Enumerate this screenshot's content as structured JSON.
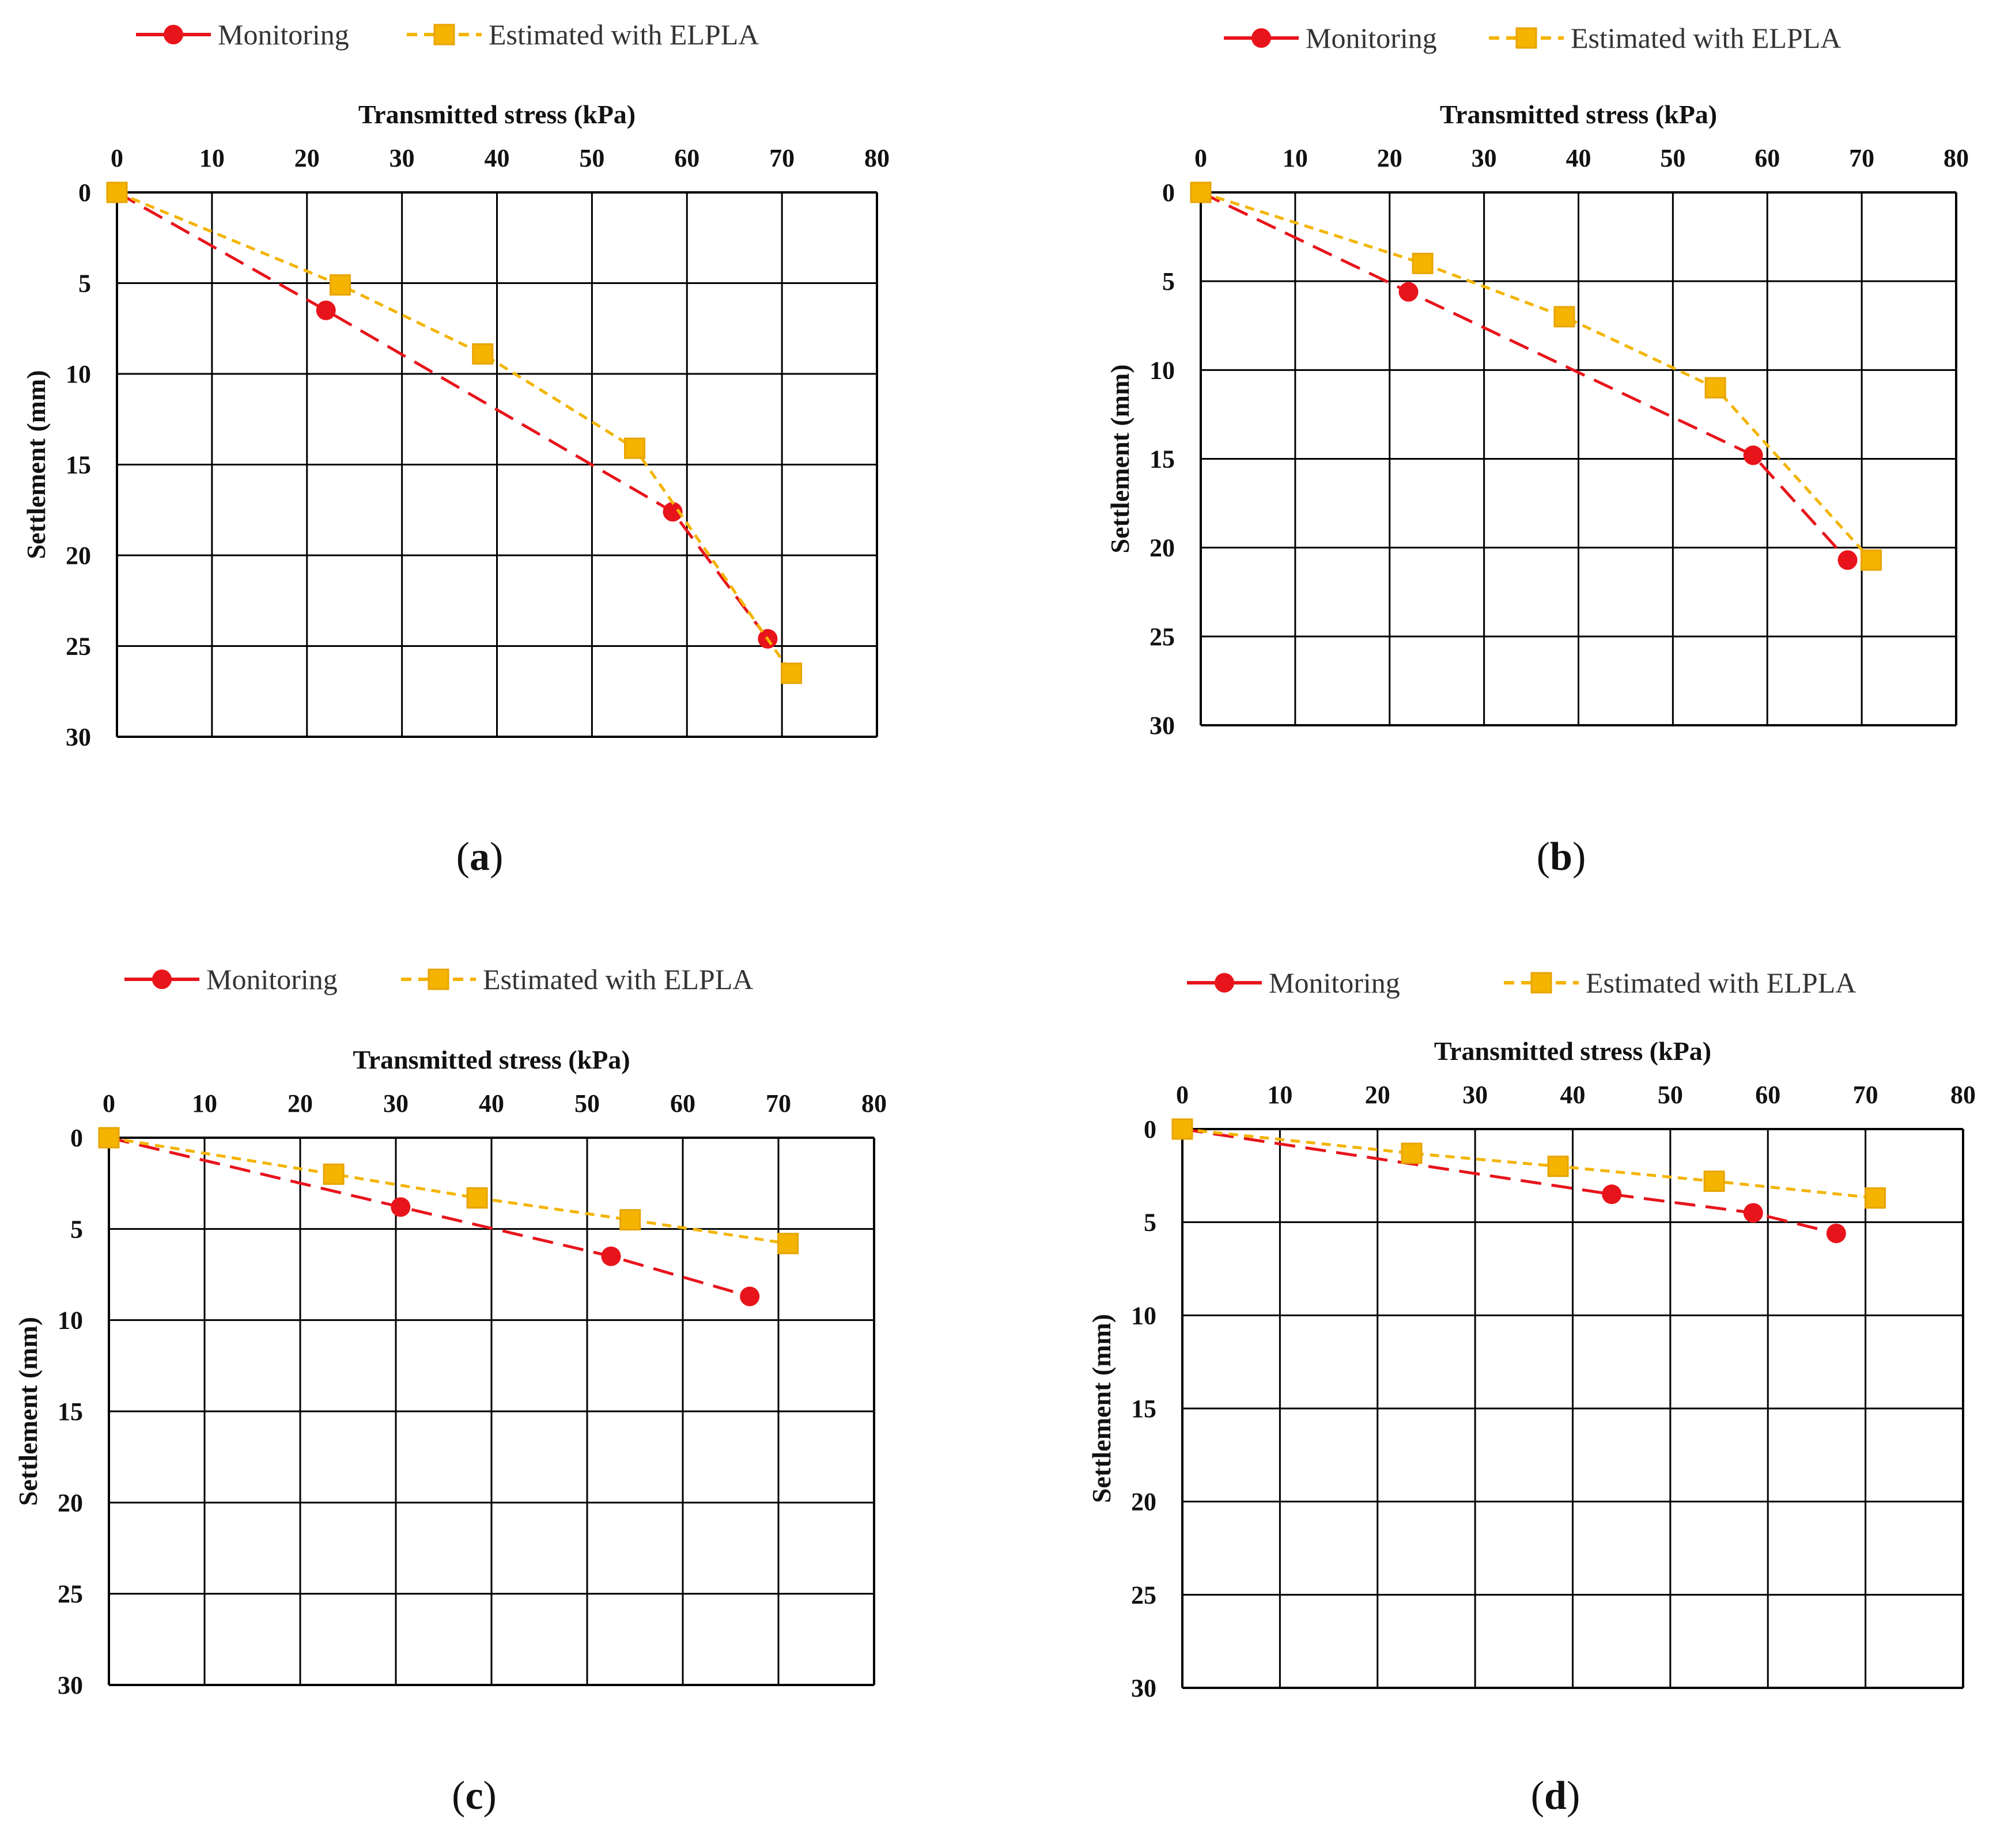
{
  "colors": {
    "monitoring": "#e8141b",
    "estimated": "#f4b400",
    "estimated_edge": "#e8a400",
    "grid": "#000000",
    "text": "#111111"
  },
  "chart_data": [
    {
      "panel": "a",
      "type": "line",
      "xlabel": "Transmitted stress (kPa)",
      "ylabel": "Settlement (mm)",
      "x_ticks": [
        "0",
        "10",
        "20",
        "30",
        "40",
        "50",
        "60",
        "70",
        "80"
      ],
      "y_ticks": [
        "0",
        "5",
        "10",
        "15",
        "20",
        "25",
        "30"
      ],
      "xlim": [
        0,
        80
      ],
      "ylim": [
        0,
        30
      ],
      "y_inverted": true,
      "x_axis_position": "top",
      "legend": {
        "monitoring": "Monitoring",
        "estimated": "Estimated with ELPLA"
      },
      "series": [
        {
          "name": "Monitoring",
          "style": "dashed-circle",
          "x": [
            0,
            22,
            58.5,
            68.5
          ],
          "y": [
            0,
            6.5,
            17.6,
            24.6
          ]
        },
        {
          "name": "Estimated with ELPLA",
          "style": "dashed-square",
          "x": [
            0,
            23.5,
            38.5,
            54.5,
            71
          ],
          "y": [
            0,
            5.1,
            8.9,
            14.1,
            26.5
          ]
        }
      ]
    },
    {
      "panel": "b",
      "type": "line",
      "xlabel": "Transmitted stress (kPa)",
      "ylabel": "Settlement (mm)",
      "x_ticks": [
        "0",
        "10",
        "20",
        "30",
        "40",
        "50",
        "60",
        "70",
        "80"
      ],
      "y_ticks": [
        "0",
        "5",
        "10",
        "15",
        "20",
        "25",
        "30"
      ],
      "xlim": [
        0,
        80
      ],
      "ylim": [
        0,
        30
      ],
      "y_inverted": true,
      "x_axis_position": "top",
      "legend": {
        "monitoring": "Monitoring",
        "estimated": "Estimated with ELPLA"
      },
      "series": [
        {
          "name": "Monitoring",
          "style": "dashed-circle",
          "x": [
            0,
            22,
            58.5,
            68.5
          ],
          "y": [
            0,
            5.6,
            14.8,
            20.7
          ]
        },
        {
          "name": "Estimated with ELPLA",
          "style": "dashed-square",
          "x": [
            0,
            23.5,
            38.5,
            54.5,
            71
          ],
          "y": [
            0,
            4.0,
            7.0,
            11.0,
            20.7
          ]
        }
      ]
    },
    {
      "panel": "c",
      "type": "line",
      "xlabel": "Transmitted stress (kPa)",
      "ylabel": "Settlement (mm)",
      "x_ticks": [
        "0",
        "10",
        "20",
        "30",
        "40",
        "50",
        "60",
        "70",
        "80"
      ],
      "y_ticks": [
        "0",
        "5",
        "10",
        "15",
        "20",
        "25",
        "30"
      ],
      "xlim": [
        0,
        80
      ],
      "ylim": [
        0,
        30
      ],
      "y_inverted": true,
      "x_axis_position": "top",
      "legend": {
        "monitoring": "Monitoring",
        "estimated": "Estimated with ELPLA"
      },
      "series": [
        {
          "name": "Monitoring",
          "style": "dashed-circle",
          "x": [
            0,
            30.5,
            52.5,
            67
          ],
          "y": [
            0,
            3.8,
            6.5,
            8.7
          ]
        },
        {
          "name": "Estimated with ELPLA",
          "style": "dashed-square",
          "x": [
            0,
            23.5,
            38.5,
            54.5,
            71
          ],
          "y": [
            0,
            2.0,
            3.3,
            4.5,
            5.8
          ]
        }
      ]
    },
    {
      "panel": "d",
      "type": "line",
      "xlabel": "Transmitted stress (kPa)",
      "ylabel": "Settlement (mm)",
      "x_ticks": [
        "0",
        "10",
        "20",
        "30",
        "40",
        "50",
        "60",
        "70",
        "80"
      ],
      "y_ticks": [
        "0",
        "5",
        "10",
        "15",
        "20",
        "25",
        "30"
      ],
      "xlim": [
        0,
        80
      ],
      "ylim": [
        0,
        30
      ],
      "y_inverted": true,
      "x_axis_position": "top",
      "legend": {
        "monitoring": "Monitoring",
        "estimated": "Estimated with ELPLA"
      },
      "series": [
        {
          "name": "Monitoring",
          "style": "dashed-circle",
          "x": [
            0,
            44,
            58.5,
            67
          ],
          "y": [
            0,
            3.5,
            4.5,
            5.6
          ]
        },
        {
          "name": "Estimated with ELPLA",
          "style": "dashed-square",
          "x": [
            0,
            23.5,
            38.5,
            54.5,
            71
          ],
          "y": [
            0,
            1.3,
            2.0,
            2.8,
            3.7
          ]
        }
      ]
    }
  ]
}
